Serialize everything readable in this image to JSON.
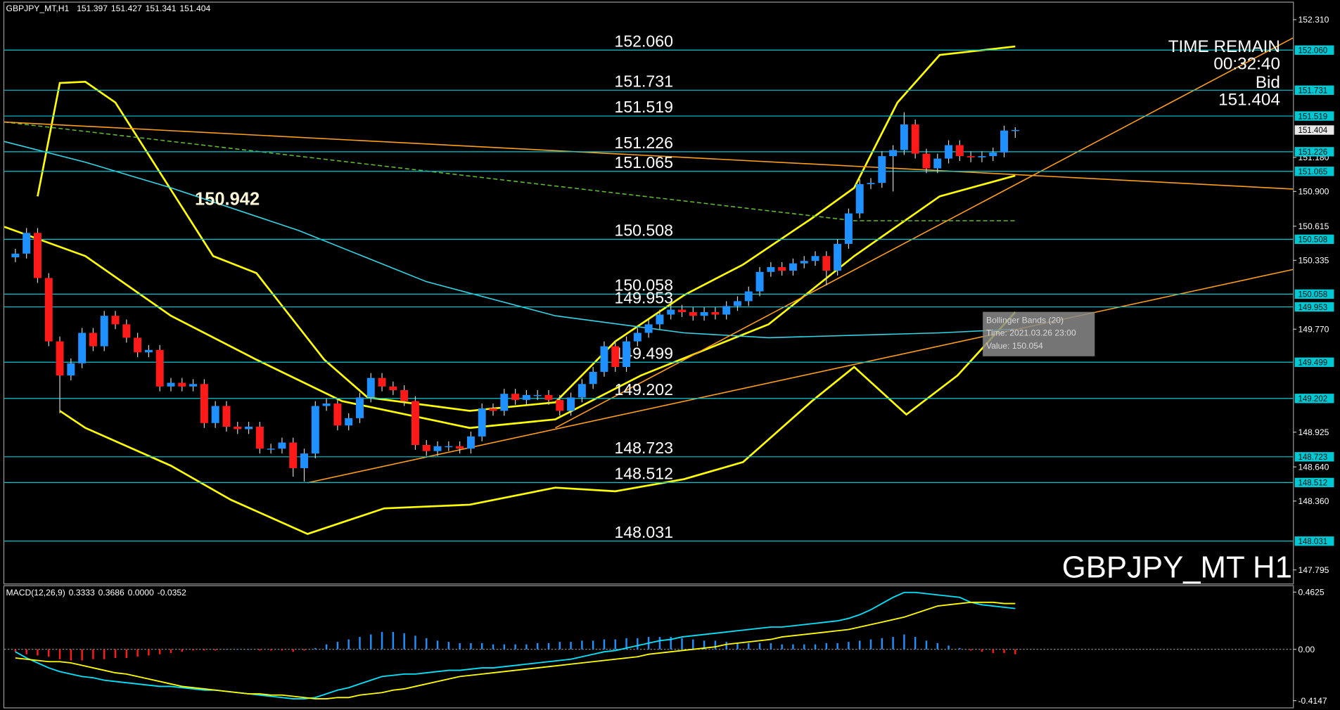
{
  "header": {
    "symbol": "GBPJPY_MT,H1"
  },
  "annotation": "150.942",
  "watermark": "GBPJPY_MT H1",
  "countdown": {
    "title": "TIME REMAIN",
    "time": "00:32:40",
    "bid_label": "Bid"
  },
  "tooltip": [
    "Bollinger Bands (20)",
    "Time: 2021.03.26 23:00",
    "Value: 150.054"
  ],
  "chart_data": [
    {
      "type": "candlestick",
      "up_color": "#1e90ff",
      "down_color": "#ff1a1a",
      "open": [
        150.36,
        150.39,
        150.56,
        150.19,
        149.67,
        149.39,
        149.49,
        149.74,
        149.63,
        149.88,
        149.81,
        149.7,
        149.58,
        149.6,
        149.3,
        149.33,
        149.3,
        149.32,
        149.0,
        149.14,
        148.97,
        148.95,
        148.97,
        148.79,
        148.79,
        148.84,
        148.63,
        148.75,
        149.14,
        149.16,
        148.98,
        149.04,
        149.21,
        149.37,
        149.3,
        149.27,
        149.18,
        148.82,
        148.77,
        148.81,
        148.81,
        148.79,
        148.89,
        149.12,
        149.1,
        149.24,
        149.19,
        149.23,
        149.23,
        149.19,
        149.1,
        149.21,
        149.32,
        149.42,
        149.63,
        149.46,
        149.67,
        149.74,
        149.81,
        149.89,
        149.93,
        149.91,
        149.88,
        149.91,
        149.89,
        149.96,
        150.0,
        150.08,
        150.24,
        150.28,
        150.25,
        150.31,
        150.33,
        150.37,
        150.25,
        150.47,
        150.72,
        150.96,
        150.97,
        151.19,
        151.24,
        151.45,
        151.21,
        151.09,
        151.17,
        151.28,
        151.19,
        151.18,
        151.19,
        151.22,
        151.397
      ],
      "high": [
        150.43,
        150.6,
        150.6,
        150.23,
        149.71,
        149.53,
        149.78,
        149.78,
        149.92,
        149.92,
        149.85,
        149.74,
        149.64,
        149.64,
        149.37,
        149.37,
        149.36,
        149.36,
        149.18,
        149.18,
        149.01,
        149.01,
        149.01,
        148.83,
        148.88,
        148.88,
        148.79,
        149.18,
        149.2,
        149.2,
        149.08,
        149.25,
        149.41,
        149.41,
        149.34,
        149.31,
        149.22,
        148.86,
        148.85,
        148.85,
        148.85,
        148.93,
        149.16,
        149.16,
        149.28,
        149.28,
        149.27,
        149.27,
        149.27,
        149.23,
        149.25,
        149.36,
        149.46,
        149.67,
        149.67,
        149.71,
        149.78,
        149.85,
        149.93,
        149.97,
        149.97,
        149.95,
        149.95,
        149.95,
        150.0,
        150.04,
        150.12,
        150.28,
        150.32,
        150.32,
        150.35,
        150.37,
        150.41,
        150.41,
        150.51,
        150.76,
        151.0,
        151.01,
        151.23,
        151.28,
        151.55,
        151.49,
        151.25,
        151.21,
        151.32,
        151.32,
        151.23,
        151.23,
        151.26,
        151.44,
        151.427
      ],
      "low": [
        150.32,
        150.35,
        150.15,
        149.63,
        149.08,
        149.35,
        149.45,
        149.59,
        149.59,
        149.77,
        149.66,
        149.54,
        149.54,
        149.26,
        149.26,
        149.26,
        149.26,
        148.96,
        148.96,
        148.93,
        148.91,
        148.91,
        148.75,
        148.75,
        148.75,
        148.56,
        148.52,
        148.71,
        149.1,
        148.94,
        148.94,
        149.0,
        149.17,
        149.26,
        149.23,
        149.14,
        148.78,
        148.73,
        148.73,
        148.77,
        148.75,
        148.75,
        148.85,
        149.06,
        149.06,
        149.15,
        149.15,
        149.19,
        149.15,
        149.06,
        149.06,
        149.17,
        149.28,
        149.38,
        149.42,
        149.42,
        149.63,
        149.7,
        149.77,
        149.85,
        149.87,
        149.84,
        149.84,
        149.85,
        149.85,
        149.92,
        149.96,
        150.04,
        150.2,
        150.21,
        150.21,
        150.27,
        150.29,
        150.13,
        150.21,
        150.43,
        150.68,
        150.92,
        150.93,
        150.9,
        151.2,
        151.17,
        151.05,
        151.05,
        151.13,
        151.15,
        151.14,
        151.14,
        151.15,
        151.18,
        151.341
      ],
      "close": [
        150.39,
        150.56,
        150.19,
        149.67,
        149.39,
        149.49,
        149.74,
        149.63,
        149.88,
        149.81,
        149.7,
        149.58,
        149.6,
        149.3,
        149.33,
        149.3,
        149.32,
        149.0,
        149.14,
        148.97,
        148.95,
        148.97,
        148.79,
        148.79,
        148.84,
        148.63,
        148.75,
        149.14,
        149.16,
        148.98,
        149.04,
        149.21,
        149.37,
        149.3,
        149.27,
        149.18,
        148.82,
        148.77,
        148.81,
        148.81,
        148.79,
        148.89,
        149.12,
        149.1,
        149.24,
        149.19,
        149.23,
        149.23,
        149.19,
        149.1,
        149.21,
        149.32,
        149.42,
        149.63,
        149.46,
        149.67,
        149.74,
        149.81,
        149.89,
        149.93,
        149.91,
        149.88,
        149.91,
        149.89,
        149.96,
        150.0,
        150.08,
        150.24,
        150.28,
        150.25,
        150.31,
        150.33,
        150.37,
        150.25,
        150.47,
        150.72,
        150.96,
        150.97,
        151.19,
        151.24,
        151.45,
        151.21,
        151.09,
        151.17,
        151.28,
        151.19,
        151.18,
        151.19,
        151.22,
        151.4,
        151.404
      ],
      "ylim": [
        147.683,
        152.45
      ],
      "yticks": [
        {
          "value": 152.31,
          "label": "152.310"
        },
        {
          "value": 151.18,
          "label": "151.180"
        },
        {
          "value": 150.9,
          "label": "150.900"
        },
        150.615,
        150.335,
        {
          "value": 149.77,
          "label": "149.770"
        },
        148.925,
        {
          "value": 148.64,
          "label": "148.640"
        },
        {
          "value": 148.36,
          "label": "148.360"
        },
        147.795
      ],
      "level_color": "#00c8d2",
      "levels": [
        {
          "value": 152.06,
          "label": "152.060"
        },
        151.731,
        151.519,
        151.226,
        151.065,
        150.508,
        150.058,
        149.953,
        149.499,
        149.202,
        148.723,
        148.512,
        148.031
      ],
      "overlays": [
        {
          "color": "#ffff00",
          "style": "thick",
          "x": [
            2,
            4,
            6.3,
            9,
            17.8,
            21.7,
            27.8,
            31.7,
            40.9,
            48.6,
            54,
            60.2,
            65.5,
            71.7,
            75.5,
            79.4,
            83.2,
            90
          ],
          "values": [
            150.86,
            151.79,
            151.8,
            151.63,
            150.37,
            150.23,
            149.52,
            149.21,
            149.1,
            149.17,
            149.67,
            150.05,
            150.3,
            150.68,
            150.93,
            151.63,
            152.02,
            152.09
          ]
        },
        {
          "color": "#ffff00",
          "style": "thick",
          "x": [
            4,
            6.3,
            14,
            19.4,
            26.3,
            33.2,
            40.9,
            48.6,
            54,
            60.2,
            65.5,
            71.7,
            75.5,
            80.2,
            84.8,
            90
          ],
          "values": [
            149.1,
            148.96,
            148.65,
            148.37,
            148.09,
            148.3,
            148.33,
            148.47,
            148.44,
            148.54,
            148.68,
            149.18,
            149.46,
            149.07,
            149.39,
            149.91
          ]
        },
        {
          "color": "#ffff00",
          "style": "thick",
          "x": [
            -1,
            6.3,
            14,
            21.7,
            29.4,
            40.9,
            48.6,
            56.3,
            67.8,
            75.5,
            83.2,
            90
          ],
          "values": [
            150.61,
            150.37,
            149.88,
            149.52,
            149.18,
            148.96,
            149.03,
            149.39,
            149.81,
            150.37,
            150.86,
            151.03
          ]
        },
        {
          "color": "#33d6e8",
          "style": "thin",
          "x": [
            -1,
            6.3,
            14,
            25.5,
            37,
            48.6,
            60.2,
            67.8,
            83.2,
            90
          ],
          "values": [
            151.31,
            151.14,
            150.93,
            150.58,
            150.16,
            149.88,
            149.74,
            149.7,
            149.74,
            149.77
          ]
        },
        {
          "color": "#5fb832",
          "style": "dashed",
          "x": [
            -1,
            75.5,
            90
          ],
          "values": [
            151.47,
            150.66,
            150.66
          ]
        },
        {
          "color": "#ff9f1a",
          "style": "thin",
          "x": [
            -1,
            115
          ],
          "values": [
            151.47,
            150.92
          ]
        },
        {
          "color": "#ff9f1a",
          "style": "thin",
          "x": [
            26.3,
            115
          ],
          "values": [
            148.51,
            150.26
          ]
        },
        {
          "color": "#ff9f1a",
          "style": "thin",
          "x": [
            48.6,
            115
          ],
          "values": [
            148.96,
            152.16
          ]
        }
      ]
    },
    {
      "type": "macd",
      "title": "MACD(12,26,9)",
      "readout": [
        0.3333,
        0.3686,
        {
          "value": 0,
          "label": "0.0000"
        },
        -0.0352
      ],
      "hist_up_color": "#1e90ff",
      "hist_down_color": "#ff1a1a",
      "histogram": [
        -0.02,
        -0.04,
        -0.05,
        -0.06,
        -0.08,
        -0.09,
        -0.09,
        -0.08,
        -0.08,
        -0.07,
        -0.07,
        -0.06,
        -0.05,
        -0.04,
        -0.03,
        -0.02,
        -0.01,
        -0.01,
        -0.01,
        0,
        0,
        0,
        -0.01,
        -0.01,
        -0.01,
        -0.02,
        -0.01,
        0.01,
        0.04,
        0.06,
        0.08,
        0.1,
        0.12,
        0.14,
        0.14,
        0.13,
        0.11,
        0.09,
        0.07,
        0.06,
        0.05,
        0.05,
        0.05,
        0.04,
        0.04,
        0.04,
        0.04,
        0.05,
        0.05,
        0.06,
        0.06,
        0.07,
        0.07,
        0.08,
        0.08,
        0.09,
        0.09,
        0.1,
        0.1,
        0.1,
        0.09,
        0.08,
        0.07,
        0.07,
        0.06,
        0.05,
        0.05,
        0.05,
        0.05,
        0.04,
        0.04,
        0.04,
        0.04,
        0.05,
        0.05,
        0.06,
        0.07,
        0.08,
        0.09,
        0.1,
        0.12,
        0.1,
        0.07,
        0.05,
        0.03,
        0.01,
        -0.01,
        -0.02,
        -0.03,
        -0.03,
        -0.04
      ],
      "series": [
        {
          "color": "#00e5ff",
          "values": [
            -0.02,
            -0.07,
            -0.11,
            -0.15,
            -0.18,
            -0.2,
            -0.22,
            -0.23,
            -0.25,
            -0.26,
            -0.27,
            -0.28,
            -0.29,
            -0.3,
            -0.3,
            -0.31,
            -0.32,
            -0.33,
            -0.33,
            -0.34,
            -0.35,
            -0.36,
            -0.37,
            -0.38,
            -0.39,
            -0.4,
            -0.4,
            -0.39,
            -0.36,
            -0.33,
            -0.31,
            -0.28,
            -0.25,
            -0.22,
            -0.21,
            -0.2,
            -0.2,
            -0.19,
            -0.18,
            -0.17,
            -0.17,
            -0.16,
            -0.15,
            -0.15,
            -0.14,
            -0.13,
            -0.12,
            -0.11,
            -0.1,
            -0.09,
            -0.08,
            -0.06,
            -0.04,
            -0.02,
            -0.01,
            0.01,
            0.03,
            0.05,
            0.07,
            0.08,
            0.1,
            0.11,
            0.12,
            0.13,
            0.14,
            0.15,
            0.16,
            0.17,
            0.18,
            0.18,
            0.19,
            0.2,
            0.21,
            0.22,
            0.23,
            0.25,
            0.28,
            0.32,
            0.37,
            0.42,
            0.46,
            0.46,
            0.45,
            0.44,
            0.43,
            0.42,
            0.38,
            0.36,
            0.35,
            0.34,
            0.33
          ]
        },
        {
          "color": "#ffff00",
          "values": [
            -0.07,
            -0.08,
            -0.09,
            -0.1,
            -0.1,
            -0.11,
            -0.13,
            -0.15,
            -0.17,
            -0.19,
            -0.2,
            -0.22,
            -0.24,
            -0.26,
            -0.28,
            -0.3,
            -0.31,
            -0.32,
            -0.33,
            -0.34,
            -0.35,
            -0.36,
            -0.36,
            -0.37,
            -0.37,
            -0.38,
            -0.39,
            -0.4,
            -0.4,
            -0.39,
            -0.39,
            -0.37,
            -0.36,
            -0.35,
            -0.33,
            -0.32,
            -0.3,
            -0.28,
            -0.26,
            -0.24,
            -0.22,
            -0.21,
            -0.2,
            -0.19,
            -0.18,
            -0.17,
            -0.16,
            -0.15,
            -0.14,
            -0.13,
            -0.12,
            -0.11,
            -0.1,
            -0.09,
            -0.08,
            -0.07,
            -0.06,
            -0.04,
            -0.03,
            -0.02,
            -0.01,
            0,
            0.01,
            0.02,
            0.04,
            0.05,
            0.06,
            0.07,
            0.08,
            0.1,
            0.11,
            0.12,
            0.13,
            0.14,
            0.15,
            0.16,
            0.18,
            0.2,
            0.22,
            0.24,
            0.26,
            0.29,
            0.32,
            0.35,
            0.36,
            0.37,
            0.38,
            0.38,
            0.38,
            0.37,
            0.37
          ]
        }
      ],
      "ylim": [
        -0.47,
        0.511
      ],
      "yticks": [
        0.4625,
        {
          "value": 0,
          "label": "0.00"
        },
        -0.4147
      ]
    }
  ]
}
